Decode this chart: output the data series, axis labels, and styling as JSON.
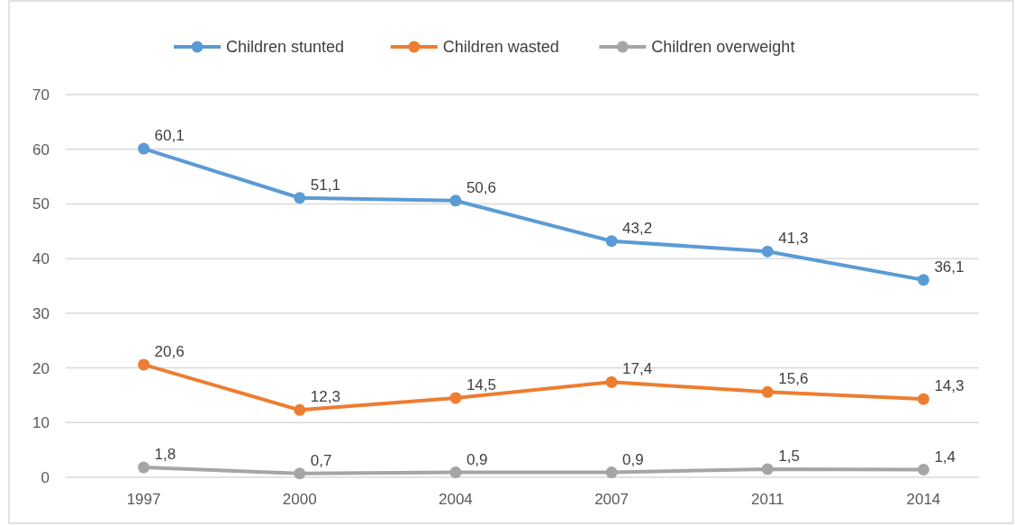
{
  "chart_data": {
    "type": "line",
    "categories": [
      "1997",
      "2000",
      "2004",
      "2007",
      "2011",
      "2014"
    ],
    "series": [
      {
        "name": "Children stunted",
        "color": "#5b9bd5",
        "values": [
          60.1,
          51.1,
          50.6,
          43.2,
          41.3,
          36.1
        ],
        "value_labels": [
          "60,1",
          "51,1",
          "50,6",
          "43,2",
          "41,3",
          "36,1"
        ]
      },
      {
        "name": "Children wasted",
        "color": "#ed7d31",
        "values": [
          20.6,
          12.3,
          14.5,
          17.4,
          15.6,
          14.3
        ],
        "value_labels": [
          "20,6",
          "12,3",
          "14,5",
          "17,4",
          "15,6",
          "14,3"
        ]
      },
      {
        "name": "Children overweight",
        "color": "#a5a5a5",
        "values": [
          1.8,
          0.7,
          0.9,
          0.9,
          1.5,
          1.4
        ],
        "value_labels": [
          "1,8",
          "0,7",
          "0,9",
          "0,9",
          "1,5",
          "1,4"
        ]
      }
    ],
    "ylim": [
      0,
      70
    ],
    "yticks": [
      0,
      10,
      20,
      30,
      40,
      50,
      60,
      70
    ],
    "grid": "y",
    "legend": "top",
    "marker": "circle",
    "line_style": "solid"
  }
}
